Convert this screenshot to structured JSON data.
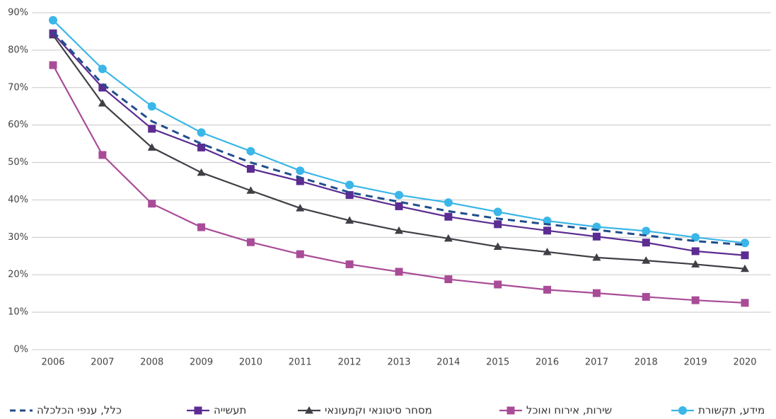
{
  "chart_data": {
    "type": "line",
    "x": [
      2006,
      2007,
      2008,
      2009,
      2010,
      2011,
      2012,
      2013,
      2014,
      2015,
      2016,
      2017,
      2018,
      2019,
      2020
    ],
    "xlim": [
      2006,
      2020
    ],
    "xticks": [
      2006,
      2007,
      2008,
      2009,
      2010,
      2011,
      2012,
      2013,
      2014,
      2015,
      2016,
      2017,
      2018,
      2019,
      2020
    ],
    "ylim": [
      0,
      90
    ],
    "yticks": [
      {
        "value": 0,
        "label": "0%"
      },
      {
        "value": 10,
        "label": "10%"
      },
      {
        "value": 20,
        "label": "20%"
      },
      {
        "value": 30,
        "label": "30%"
      },
      {
        "value": 40,
        "label": "40%"
      },
      {
        "value": 50,
        "label": "50%"
      },
      {
        "value": 60,
        "label": "60%"
      },
      {
        "value": 70,
        "label": "70%"
      },
      {
        "value": 80,
        "label": "80%"
      },
      {
        "value": 90,
        "label": "90%"
      }
    ],
    "grid": true,
    "series": [
      {
        "name": "מידע, תקשורת",
        "color": "#3bb6e8",
        "marker": "circle",
        "values": [
          88,
          75,
          65,
          58,
          53,
          47.8,
          44,
          41.3,
          39.3,
          36.8,
          34.4,
          32.8,
          31.7,
          30,
          28.5
        ]
      },
      {
        "name": "שירות, אירוח ואוכל",
        "color": "#a94c97",
        "marker": "square",
        "values": [
          76,
          52,
          39,
          32.7,
          28.7,
          25.5,
          22.8,
          20.8,
          18.8,
          17.4,
          16,
          15.1,
          14.1,
          13.2,
          12.5
        ]
      },
      {
        "name": "מסחר סיטונאי וקמעונאי",
        "color": "#3f3f46",
        "marker": "triangle",
        "values": [
          84,
          65.8,
          54,
          47.3,
          42.5,
          37.8,
          34.5,
          31.8,
          29.7,
          27.5,
          26.1,
          24.6,
          23.8,
          22.8,
          21.6
        ]
      },
      {
        "name": "תעשייה",
        "color": "#5b2c91",
        "marker": "square",
        "values": [
          84.5,
          70,
          59,
          54,
          48.3,
          45,
          41.3,
          38.3,
          35.5,
          33.5,
          31.8,
          30.2,
          28.6,
          26.3,
          25.2
        ]
      },
      {
        "name": "כלל, ענפי הכלכלה",
        "color": "#1f4e8c",
        "marker": "none",
        "dashed": true,
        "values": [
          85,
          71,
          61,
          55,
          50,
          46,
          42,
          39.5,
          37,
          35,
          33.5,
          32,
          30.5,
          29,
          28
        ]
      }
    ]
  }
}
